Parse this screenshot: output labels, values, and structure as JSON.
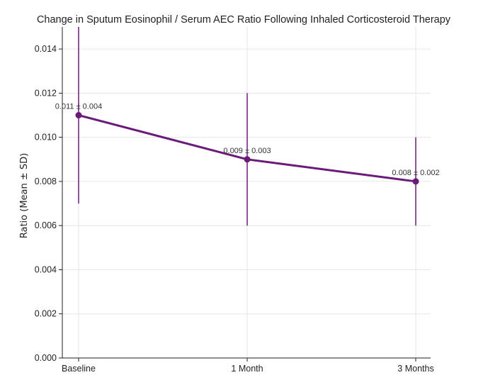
{
  "chart_data": {
    "type": "line",
    "title": "Change in Sputum Eosinophil / Serum AEC Ratio Following Inhaled Corticosteroid Therapy",
    "xlabel": "",
    "ylabel": "Ratio (Mean ± SD)",
    "categories": [
      "Baseline",
      "1 Month",
      "3 Months"
    ],
    "series": [
      {
        "values": [
          0.011,
          0.009,
          0.008
        ],
        "errors": [
          0.004,
          0.003,
          0.002
        ],
        "labels": [
          "0.011 ± 0.004",
          "0.009 ± 0.003",
          "0.008 ± 0.002"
        ]
      }
    ],
    "ylim": [
      0,
      0.015
    ],
    "yticks": [
      "0.000",
      "0.002",
      "0.004",
      "0.006",
      "0.008",
      "0.010",
      "0.012",
      "0.014"
    ],
    "grid": true,
    "color": "#6a1b7a"
  }
}
